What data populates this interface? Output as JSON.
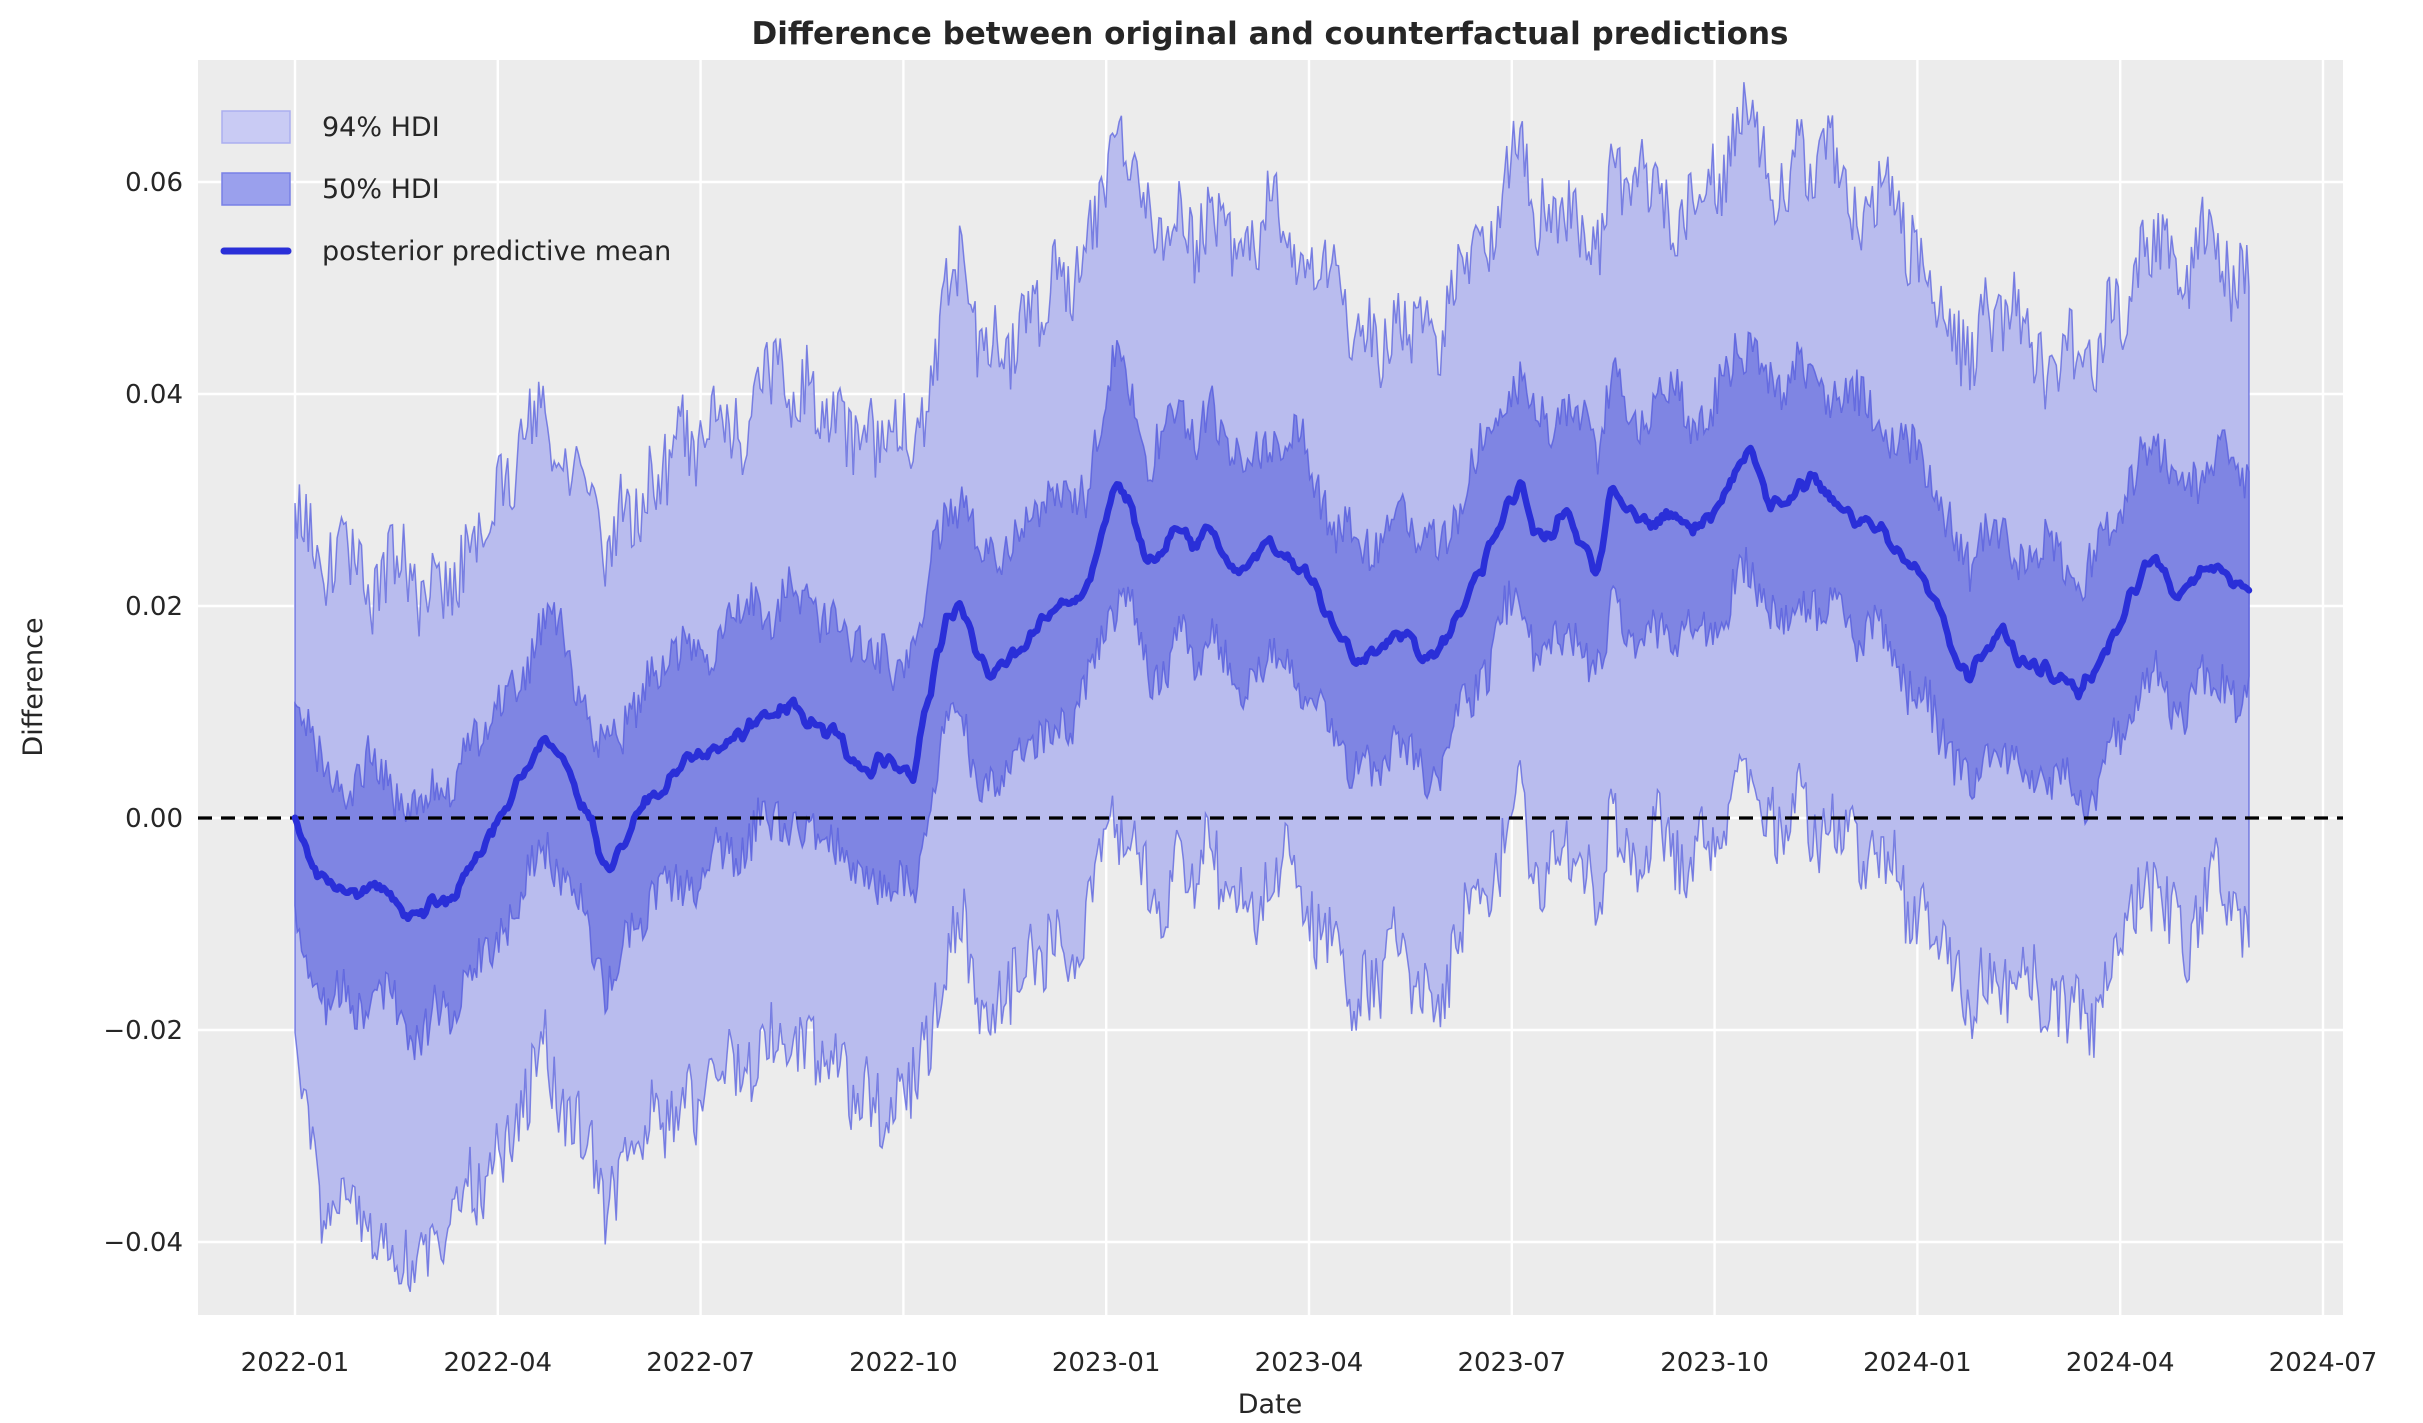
{
  "colors": {
    "figure_bg": "#ffffff",
    "plot_bg": "#ececec",
    "grid": "#ffffff",
    "hdi94_fill": "#b9bcee",
    "hdi50_fill": "#7f85e3",
    "band_edge": "#5a62de",
    "mean_line": "#2a2fd8",
    "zero_line": "#000000",
    "text": "#262626",
    "legend_94_fill": "#c9cbf4",
    "legend_94_edge": "#abaff0",
    "legend_50_fill": "#9aa0ed",
    "legend_50_edge": "#7880e6"
  },
  "legend": {
    "items": [
      {
        "label": "94% HDI",
        "type": "patch"
      },
      {
        "label": "50% HDI",
        "type": "patch"
      },
      {
        "label": "posterior predictive mean",
        "type": "line"
      }
    ]
  },
  "chart_data": {
    "type": "line+area",
    "title": "Difference between original and counterfactual predictions",
    "xlabel": "Date",
    "ylabel": "Difference",
    "x_ticks": [
      "2022-01",
      "2022-04",
      "2022-07",
      "2022-10",
      "2023-01",
      "2023-04",
      "2023-07",
      "2023-10",
      "2024-01",
      "2024-04",
      "2024-07"
    ],
    "y_ticks": [
      "0.06",
      "0.04",
      "0.02",
      "0.00",
      "−0.02",
      "−0.04"
    ],
    "ylim": [
      -0.047,
      0.0715
    ],
    "grid": true,
    "legend_position": "upper left",
    "reference_line_y": 0.0,
    "x_start_date": "2022-01-01",
    "x_end_date": "2024-06-01",
    "sample_step_days": 7,
    "series": {
      "mean": [
        0.0,
        -0.004,
        -0.0055,
        -0.0065,
        -0.0075,
        -0.006,
        -0.007,
        -0.0088,
        -0.0092,
        -0.008,
        -0.0072,
        -0.005,
        -0.003,
        -0.0005,
        0.0025,
        0.005,
        0.008,
        0.0062,
        0.003,
        -0.0005,
        -0.0048,
        -0.0028,
        0.0008,
        0.002,
        0.0035,
        0.0048,
        0.0055,
        0.0063,
        0.0072,
        0.0082,
        0.0094,
        0.01,
        0.0108,
        0.0094,
        0.0088,
        0.0075,
        0.0055,
        0.0046,
        0.0058,
        0.0042,
        0.0042,
        0.0125,
        0.0185,
        0.0205,
        0.0152,
        0.0135,
        0.015,
        0.0165,
        0.018,
        0.0195,
        0.0205,
        0.0215,
        0.027,
        0.032,
        0.029,
        0.0238,
        0.0252,
        0.0278,
        0.0255,
        0.0272,
        0.0246,
        0.0228,
        0.025,
        0.0258,
        0.0247,
        0.024,
        0.0205,
        0.018,
        0.016,
        0.0148,
        0.0158,
        0.0178,
        0.0165,
        0.0144,
        0.0165,
        0.0195,
        0.0222,
        0.0255,
        0.029,
        0.032,
        0.0272,
        0.0262,
        0.0292,
        0.0258,
        0.0235,
        0.0315,
        0.0288,
        0.0275,
        0.0282,
        0.0285,
        0.027,
        0.0282,
        0.0298,
        0.0334,
        0.0344,
        0.03,
        0.0292,
        0.0315,
        0.0318,
        0.03,
        0.029,
        0.0276,
        0.0282,
        0.0262,
        0.0242,
        0.0225,
        0.0195,
        0.0152,
        0.013,
        0.0158,
        0.018,
        0.015,
        0.0138,
        0.0142,
        0.0136,
        0.0114,
        0.014,
        0.017,
        0.0198,
        0.0225,
        0.0248,
        0.0208,
        0.0216,
        0.0232,
        0.024,
        0.0228,
        0.0212
      ],
      "hdi50_upper_offset": [
        0.0104,
        0.0118,
        0.0095,
        0.0088,
        0.0112,
        0.0125,
        0.0099,
        0.009,
        0.0116,
        0.0106,
        0.0097,
        0.0121,
        0.0104,
        0.0118,
        0.0095,
        0.0088,
        0.0112,
        0.0125,
        0.0099,
        0.009,
        0.0116,
        0.0106,
        0.0097,
        0.0121,
        0.0104,
        0.0118,
        0.0095,
        0.0088,
        0.0112,
        0.0125,
        0.0099,
        0.009,
        0.0116,
        0.0106,
        0.0097,
        0.0121,
        0.0104,
        0.0118,
        0.0095,
        0.0088,
        0.0112,
        0.0125,
        0.0099,
        0.009,
        0.0116,
        0.0106,
        0.0097,
        0.0121,
        0.0104,
        0.0118,
        0.0095,
        0.0088,
        0.0112,
        0.0125,
        0.0099,
        0.009,
        0.0116,
        0.0106,
        0.0097,
        0.0121,
        0.0104,
        0.0118,
        0.0095,
        0.0088,
        0.0112,
        0.0125,
        0.0099,
        0.009,
        0.0116,
        0.0106,
        0.0097,
        0.0121,
        0.0104,
        0.0118,
        0.0095,
        0.0088,
        0.0112,
        0.0125,
        0.0099,
        0.009,
        0.0116,
        0.0106,
        0.0097,
        0.0121,
        0.0104,
        0.0118,
        0.0095,
        0.0088,
        0.0112,
        0.0125,
        0.0099,
        0.009,
        0.0116,
        0.0106,
        0.0097,
        0.0121,
        0.0104,
        0.0118,
        0.0095,
        0.0088,
        0.0112,
        0.0125,
        0.0099,
        0.009,
        0.0116,
        0.0106,
        0.0097,
        0.0121,
        0.0104,
        0.0118,
        0.0095,
        0.0088,
        0.0112,
        0.0125,
        0.0099,
        0.009,
        0.0116,
        0.0106,
        0.0097,
        0.0121,
        0.0104,
        0.0118,
        0.0095,
        0.0088,
        0.0112,
        0.0125,
        0.0099
      ],
      "hdi50_lower_offset": [
        0.0098,
        0.011,
        0.0124,
        0.0093,
        0.0105,
        0.0119,
        0.0089,
        0.0102,
        0.0126,
        0.0095,
        0.0114,
        0.0101,
        0.0098,
        0.011,
        0.0124,
        0.0093,
        0.0105,
        0.0119,
        0.0089,
        0.0102,
        0.0126,
        0.0095,
        0.0114,
        0.0101,
        0.0098,
        0.011,
        0.0124,
        0.0093,
        0.0105,
        0.0119,
        0.0089,
        0.0102,
        0.0126,
        0.0095,
        0.0114,
        0.0101,
        0.0098,
        0.011,
        0.0124,
        0.0093,
        0.0105,
        0.0119,
        0.0089,
        0.0102,
        0.0126,
        0.0095,
        0.0114,
        0.0101,
        0.0098,
        0.011,
        0.0124,
        0.0093,
        0.0105,
        0.0119,
        0.0089,
        0.0102,
        0.0126,
        0.0095,
        0.0114,
        0.0101,
        0.0098,
        0.011,
        0.0124,
        0.0093,
        0.0105,
        0.0119,
        0.0089,
        0.0102,
        0.0126,
        0.0095,
        0.0114,
        0.0101,
        0.0098,
        0.011,
        0.0124,
        0.0093,
        0.0105,
        0.0119,
        0.0089,
        0.0102,
        0.0126,
        0.0095,
        0.0114,
        0.0101,
        0.0098,
        0.011,
        0.0124,
        0.0093,
        0.0105,
        0.0119,
        0.0089,
        0.0102,
        0.0126,
        0.0095,
        0.0114,
        0.0101,
        0.0098,
        0.011,
        0.0124,
        0.0093,
        0.0105,
        0.0119,
        0.0089,
        0.0102,
        0.0126,
        0.0095,
        0.0114,
        0.0101,
        0.0098,
        0.011,
        0.0124,
        0.0093,
        0.0105,
        0.0119,
        0.0089,
        0.0102,
        0.0126,
        0.0095,
        0.0114,
        0.0101,
        0.0098,
        0.011,
        0.0124,
        0.0093,
        0.0105,
        0.0119,
        0.0089
      ],
      "hdi94_upper_offset": [
        0.0295,
        0.032,
        0.0282,
        0.0338,
        0.0305,
        0.0268,
        0.0312,
        0.0331,
        0.0289,
        0.0318,
        0.0276,
        0.0302,
        0.0295,
        0.032,
        0.0282,
        0.0338,
        0.0305,
        0.0268,
        0.0312,
        0.0331,
        0.0289,
        0.0318,
        0.0276,
        0.0302,
        0.0295,
        0.032,
        0.0282,
        0.0338,
        0.0305,
        0.0268,
        0.0312,
        0.0331,
        0.0289,
        0.0318,
        0.0276,
        0.0302,
        0.0295,
        0.032,
        0.0282,
        0.0338,
        0.0305,
        0.0268,
        0.0312,
        0.0331,
        0.0289,
        0.0318,
        0.0276,
        0.0302,
        0.0295,
        0.032,
        0.0282,
        0.0338,
        0.0305,
        0.033,
        0.0312,
        0.0331,
        0.0289,
        0.0318,
        0.0276,
        0.0302,
        0.0295,
        0.032,
        0.0282,
        0.0338,
        0.0305,
        0.0268,
        0.0312,
        0.0331,
        0.0289,
        0.0318,
        0.0276,
        0.0302,
        0.0295,
        0.032,
        0.0282,
        0.0338,
        0.0305,
        0.0268,
        0.0312,
        0.0331,
        0.0289,
        0.0318,
        0.0276,
        0.0302,
        0.0295,
        0.032,
        0.0282,
        0.0338,
        0.0305,
        0.0268,
        0.0312,
        0.0331,
        0.0289,
        0.033,
        0.0322,
        0.0302,
        0.0295,
        0.032,
        0.0282,
        0.0338,
        0.0305,
        0.0268,
        0.0312,
        0.0331,
        0.0289,
        0.0318,
        0.0276,
        0.0302,
        0.0295,
        0.032,
        0.0282,
        0.0338,
        0.0305,
        0.0268,
        0.0312,
        0.0331,
        0.0289,
        0.0318,
        0.0276,
        0.0302,
        0.0295,
        0.032,
        0.0282,
        0.0338,
        0.0305,
        0.0268,
        0.0312
      ],
      "hdi94_lower_offset": [
        0.021,
        0.0262,
        0.0342,
        0.031,
        0.0285,
        0.033,
        0.0316,
        0.033,
        0.0338,
        0.0305,
        0.032,
        0.0288,
        0.0325,
        0.0298,
        0.0342,
        0.031,
        0.0285,
        0.033,
        0.0316,
        0.0292,
        0.0338,
        0.0305,
        0.032,
        0.0288,
        0.0325,
        0.0298,
        0.0342,
        0.031,
        0.0285,
        0.033,
        0.0316,
        0.0292,
        0.0338,
        0.0305,
        0.032,
        0.0288,
        0.0325,
        0.0298,
        0.0342,
        0.031,
        0.0285,
        0.033,
        0.0316,
        0.0292,
        0.0338,
        0.0305,
        0.032,
        0.0288,
        0.0325,
        0.0298,
        0.0342,
        0.031,
        0.0285,
        0.033,
        0.0316,
        0.0292,
        0.0338,
        0.0305,
        0.032,
        0.0288,
        0.0325,
        0.0298,
        0.0342,
        0.031,
        0.0285,
        0.033,
        0.0316,
        0.0292,
        0.0338,
        0.0305,
        0.032,
        0.0288,
        0.0325,
        0.0298,
        0.0342,
        0.031,
        0.0285,
        0.033,
        0.0316,
        0.0292,
        0.0338,
        0.0305,
        0.032,
        0.0288,
        0.0325,
        0.0298,
        0.0342,
        0.031,
        0.0285,
        0.033,
        0.0316,
        0.0292,
        0.0338,
        0.0305,
        0.032,
        0.0288,
        0.0325,
        0.0298,
        0.0342,
        0.031,
        0.0285,
        0.033,
        0.0316,
        0.0292,
        0.0338,
        0.0305,
        0.032,
        0.0288,
        0.0325,
        0.0298,
        0.0342,
        0.031,
        0.0285,
        0.033,
        0.0316,
        0.0292,
        0.0338,
        0.0305,
        0.032,
        0.0288,
        0.0325,
        0.0298,
        0.0342,
        0.031,
        0.0285,
        0.033,
        0.0316
      ]
    },
    "render_noise": {
      "seed": 11,
      "upsample_per_step": 7,
      "mean_amp": 0.0012,
      "hdi50_amp": 0.0022,
      "hdi94_amp": 0.0035
    }
  }
}
